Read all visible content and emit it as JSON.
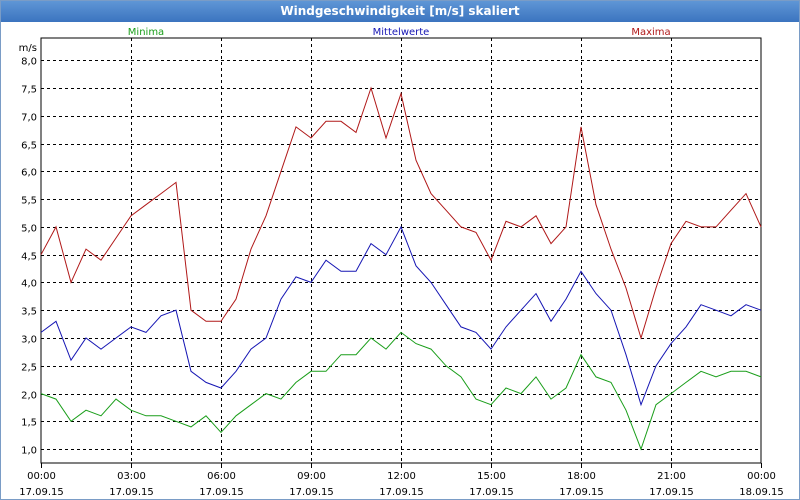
{
  "window": {
    "title": "Windgeschwindigkeit [m/s] skaliert"
  },
  "chart_data": {
    "type": "line",
    "title": "Windgeschwindigkeit [m/s] skaliert",
    "ylabel": "m/s",
    "xlabel": "",
    "ylim": [
      0.75,
      8.4
    ],
    "xlim": [
      "17.09.15 00:00",
      "18.09.15 00:00"
    ],
    "grid": true,
    "legend_placement": "top",
    "y_ticks": [
      "1,0",
      "1,5",
      "2,0",
      "2,5",
      "3,0",
      "3,5",
      "4,0",
      "4,5",
      "5,0",
      "5,5",
      "6,0",
      "6,5",
      "7,0",
      "7,5",
      "8,0"
    ],
    "y_tick_values": [
      1.0,
      1.5,
      2.0,
      2.5,
      3.0,
      3.5,
      4.0,
      4.5,
      5.0,
      5.5,
      6.0,
      6.5,
      7.0,
      7.5,
      8.0
    ],
    "x_ticks": [
      {
        "time": "00:00",
        "date": "17.09.15"
      },
      {
        "time": "03:00",
        "date": "17.09.15"
      },
      {
        "time": "06:00",
        "date": "17.09.15"
      },
      {
        "time": "09:00",
        "date": "17.09.15"
      },
      {
        "time": "12:00",
        "date": "17.09.15"
      },
      {
        "time": "15:00",
        "date": "17.09.15"
      },
      {
        "time": "18:00",
        "date": "17.09.15"
      },
      {
        "time": "21:00",
        "date": "17.09.15"
      },
      {
        "time": "00:00",
        "date": "18.09.15"
      }
    ],
    "x_hours": [
      0,
      0.5,
      1,
      1.5,
      2,
      2.5,
      3,
      3.5,
      4,
      4.5,
      5,
      5.5,
      6,
      6.5,
      7,
      7.5,
      8,
      8.5,
      9,
      9.5,
      10,
      10.5,
      11,
      11.5,
      12,
      12.5,
      13,
      13.5,
      14,
      14.5,
      15,
      15.5,
      16,
      16.5,
      17,
      17.5,
      18,
      18.5,
      19,
      19.5,
      20,
      20.5,
      21,
      21.5,
      22,
      22.5,
      23,
      23.5,
      24
    ],
    "series": [
      {
        "name": "Minima",
        "color": "#1a9e1a",
        "values": [
          2.0,
          1.9,
          1.5,
          1.7,
          1.6,
          1.9,
          1.7,
          1.6,
          1.6,
          1.5,
          1.4,
          1.6,
          1.3,
          1.6,
          1.8,
          2.0,
          1.9,
          2.2,
          2.4,
          2.4,
          2.7,
          2.7,
          3.0,
          2.8,
          3.1,
          2.9,
          2.8,
          2.5,
          2.3,
          1.9,
          1.8,
          2.1,
          2.0,
          2.3,
          1.9,
          2.1,
          2.7,
          2.3,
          2.2,
          1.7,
          1.0,
          1.8,
          2.0,
          2.2,
          2.4,
          2.3,
          2.4,
          2.4,
          2.3
        ]
      },
      {
        "name": "Mittelwerte",
        "color": "#1616b4",
        "values": [
          3.1,
          3.3,
          2.6,
          3.0,
          2.8,
          3.0,
          3.2,
          3.1,
          3.4,
          3.5,
          2.4,
          2.2,
          2.1,
          2.4,
          2.8,
          3.0,
          3.7,
          4.1,
          4.0,
          4.4,
          4.2,
          4.2,
          4.7,
          4.5,
          5.0,
          4.3,
          4.0,
          3.6,
          3.2,
          3.1,
          2.8,
          3.2,
          3.5,
          3.8,
          3.3,
          3.7,
          4.2,
          3.8,
          3.5,
          2.7,
          1.8,
          2.5,
          2.9,
          3.2,
          3.6,
          3.5,
          3.4,
          3.6,
          3.5
        ]
      },
      {
        "name": "Maxima",
        "color": "#b01818",
        "values": [
          4.5,
          5.0,
          4.0,
          4.6,
          4.4,
          4.8,
          5.2,
          5.4,
          5.6,
          5.8,
          3.5,
          3.3,
          3.3,
          3.7,
          4.6,
          5.2,
          6.0,
          6.8,
          6.6,
          6.9,
          6.9,
          6.7,
          7.5,
          6.6,
          7.4,
          6.2,
          5.6,
          5.3,
          5.0,
          4.9,
          4.4,
          5.1,
          5.0,
          5.2,
          4.7,
          5.0,
          6.8,
          5.4,
          4.6,
          3.9,
          3.0,
          3.9,
          4.7,
          5.1,
          5.0,
          5.0,
          5.3,
          5.6,
          5.0
        ]
      }
    ]
  }
}
